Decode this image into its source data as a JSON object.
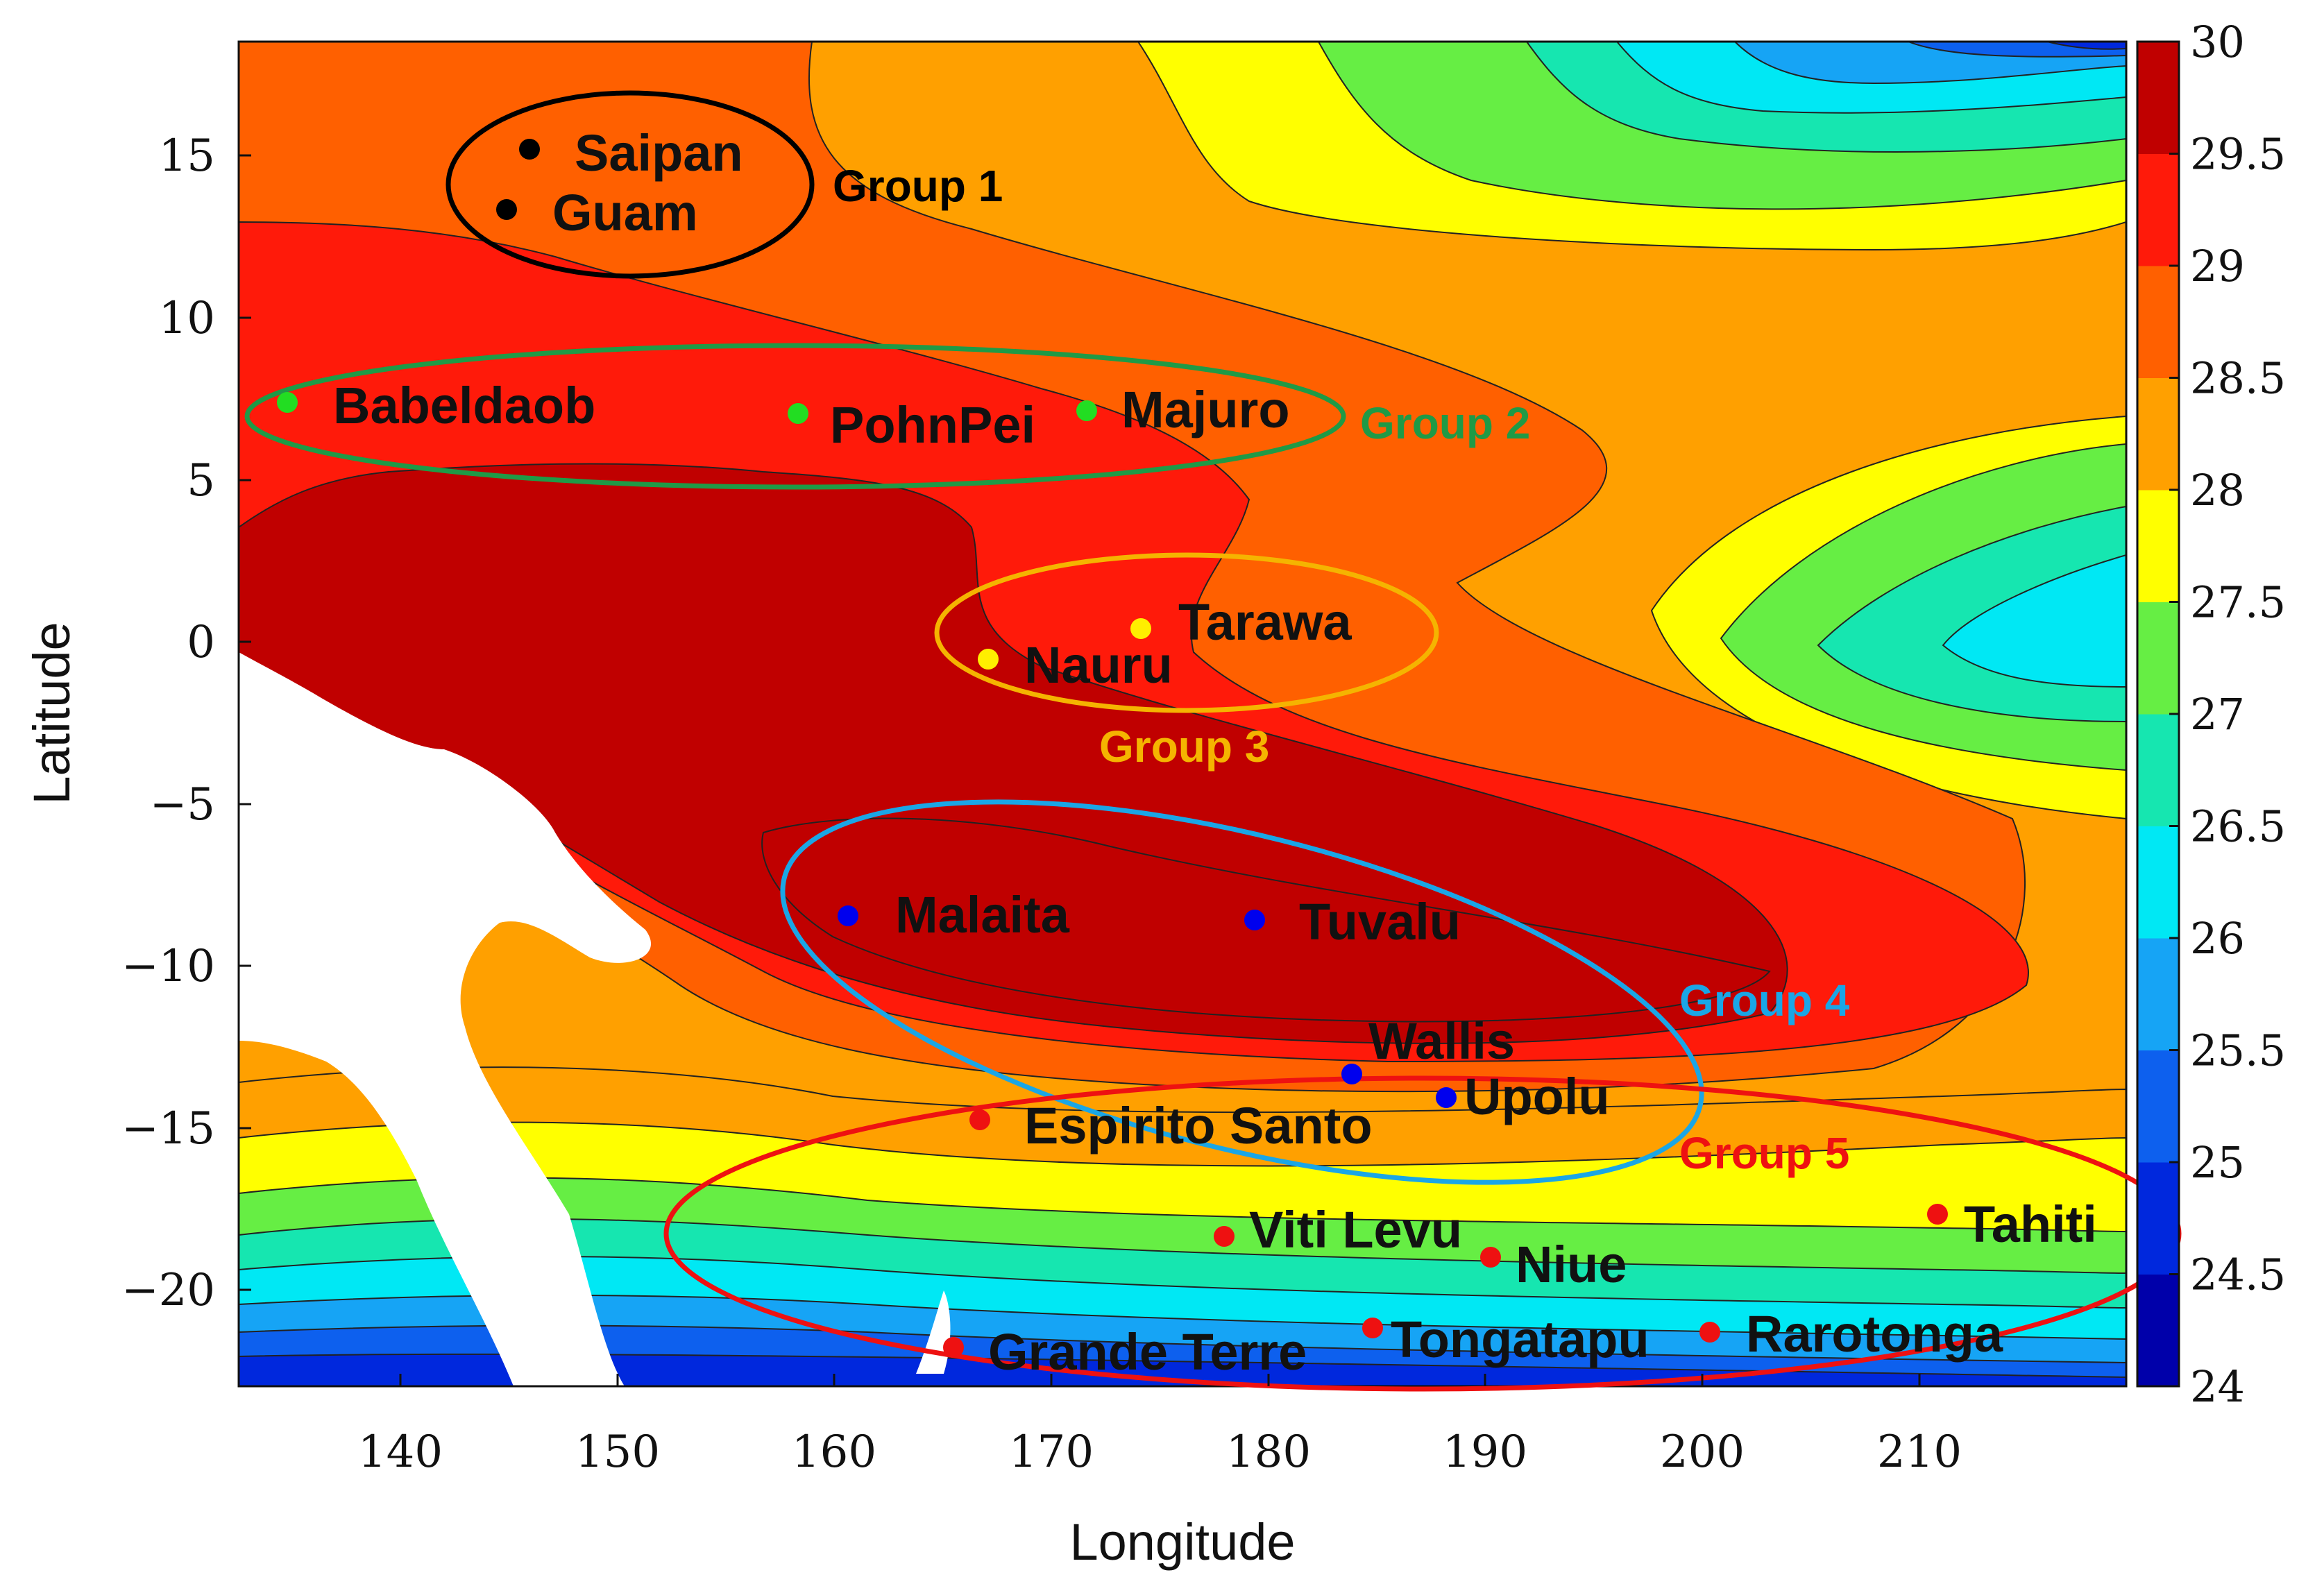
{
  "chart_data": {
    "type": "heatmap",
    "subtype": "filled-contour-map",
    "xlabel": "Longitude",
    "ylabel": "Latitude",
    "xlim": [
      132.5,
      219.5
    ],
    "ylim": [
      -23,
      18.5
    ],
    "xticks": [
      "140",
      "150",
      "160",
      "170",
      "180",
      "190",
      "200",
      "210"
    ],
    "yticks": [
      "15",
      "10",
      "5",
      "0",
      "−5",
      "−10",
      "−15",
      "−20"
    ],
    "colorbar": {
      "range": [
        24,
        30
      ],
      "ticks": [
        "30",
        "29.5",
        "29",
        "28.5",
        "28",
        "27.5",
        "27",
        "26.5",
        "26",
        "25.5",
        "25",
        "24.5",
        "24"
      ],
      "colors": [
        "#0000aa",
        "#0028dd",
        "#0d60ee",
        "#16a4f5",
        "#00e8f4",
        "#16e6b0",
        "#66ee44",
        "#ffff00",
        "#ffa000",
        "#ff6000",
        "#ff1a0a",
        "#c00000"
      ]
    },
    "sites": [
      {
        "name": "Saipan",
        "lon": 145.8,
        "lat": 15.2,
        "color": "#000000"
      },
      {
        "name": "Guam",
        "lon": 144.8,
        "lat": 13.4,
        "color": "#000000"
      },
      {
        "name": "Babeldaob",
        "lon": 134.6,
        "lat": 7.4,
        "color": "#22dd22"
      },
      {
        "name": "PohnPei",
        "lon": 158.2,
        "lat": 7.0,
        "color": "#22dd22"
      },
      {
        "name": "Majuro",
        "lon": 171.4,
        "lat": 7.1,
        "color": "#22dd22"
      },
      {
        "name": "Tarawa",
        "lon": 174.0,
        "lat": 0.4,
        "color": "#ffee00"
      },
      {
        "name": "Nauru",
        "lon": 166.9,
        "lat": -0.5,
        "color": "#ffee00"
      },
      {
        "name": "Malaita",
        "lon": 160.5,
        "lat": -8.5,
        "color": "#0000ee"
      },
      {
        "name": "Tuvalu",
        "lon": 179.2,
        "lat": -8.5,
        "color": "#0000ee"
      },
      {
        "name": "Wallis",
        "lon": 183.8,
        "lat": -13.3,
        "color": "#0000ee"
      },
      {
        "name": "Upolu",
        "lon": 188.0,
        "lat": -14.0,
        "color": "#0000ee"
      },
      {
        "name": "Espirito Santo",
        "lon": 166.8,
        "lat": -14.8,
        "color": "#ee1111"
      },
      {
        "name": "Viti Levu",
        "lon": 177.9,
        "lat": -18.3,
        "color": "#ee1111"
      },
      {
        "name": "Niue",
        "lon": 190.1,
        "lat": -19.0,
        "color": "#ee1111"
      },
      {
        "name": "Tahiti",
        "lon": 210.6,
        "lat": -17.6,
        "color": "#ee1111"
      },
      {
        "name": "Grande Terre",
        "lon": 165.4,
        "lat": -21.6,
        "color": "#ee1111"
      },
      {
        "name": "Tongatapu",
        "lon": 184.8,
        "lat": -21.1,
        "color": "#ee1111"
      },
      {
        "name": "Rarotonga",
        "lon": 200.2,
        "lat": -21.2,
        "color": "#ee1111"
      }
    ],
    "groups": [
      {
        "name": "Group 1",
        "color": "#000000"
      },
      {
        "name": "Group 2",
        "color": "#1f9a46"
      },
      {
        "name": "Group 3",
        "color": "#f5b400"
      },
      {
        "name": "Group 4",
        "color": "#1aa6e6"
      },
      {
        "name": "Group 5",
        "color": "#ee1111"
      }
    ]
  }
}
